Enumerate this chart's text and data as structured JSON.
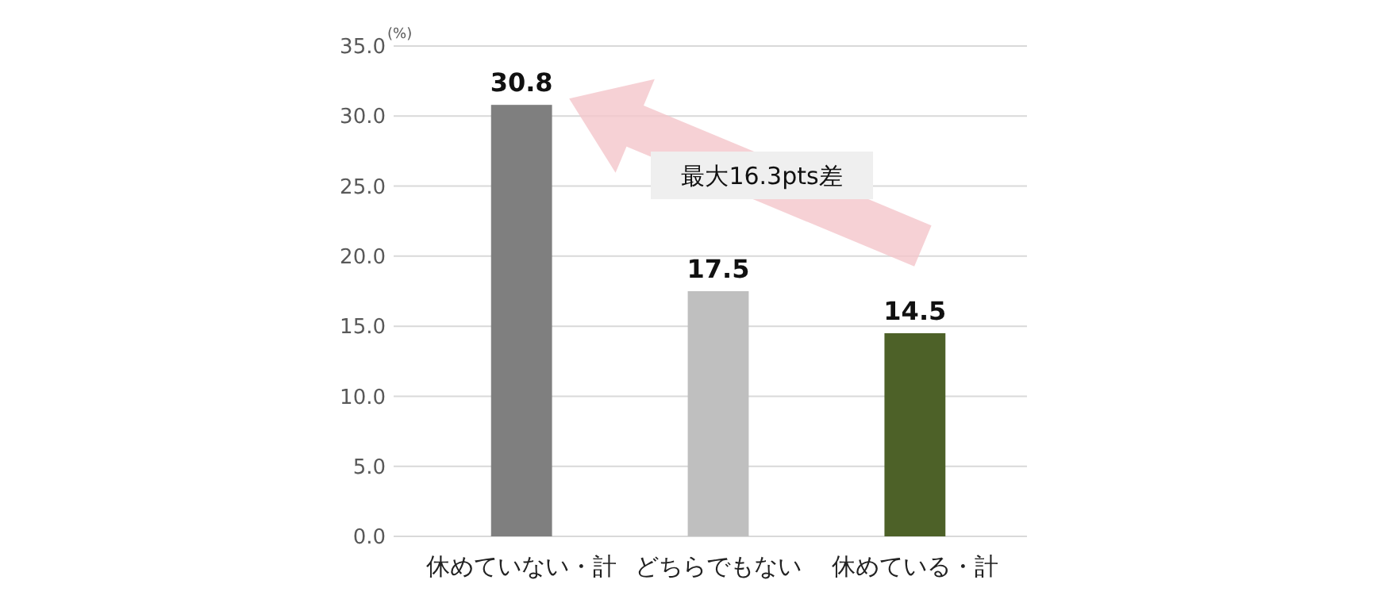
{
  "chart_data": {
    "type": "bar",
    "ylabel": "(%)",
    "categories": [
      "休めていない・計",
      "どちらでもない",
      "休めている・計"
    ],
    "values": [
      30.8,
      17.5,
      14.5
    ],
    "colors": [
      "#7f7f7f",
      "#bfbfbf",
      "#4d6128"
    ],
    "ylim": [
      0,
      35
    ],
    "yticks": [
      {
        "value": 0,
        "label": "0.0"
      },
      {
        "value": 5,
        "label": "5.0"
      },
      {
        "value": 10,
        "label": "10.0"
      },
      {
        "value": 15,
        "label": "15.0"
      },
      {
        "value": 20,
        "label": "20.0"
      },
      {
        "value": 25,
        "label": "25.0"
      },
      {
        "value": 30,
        "label": "30.0"
      },
      {
        "value": 35,
        "label": "35.0"
      }
    ],
    "grid": "y",
    "data_labels": true,
    "annotations": [
      "最大16.3pts差"
    ]
  }
}
